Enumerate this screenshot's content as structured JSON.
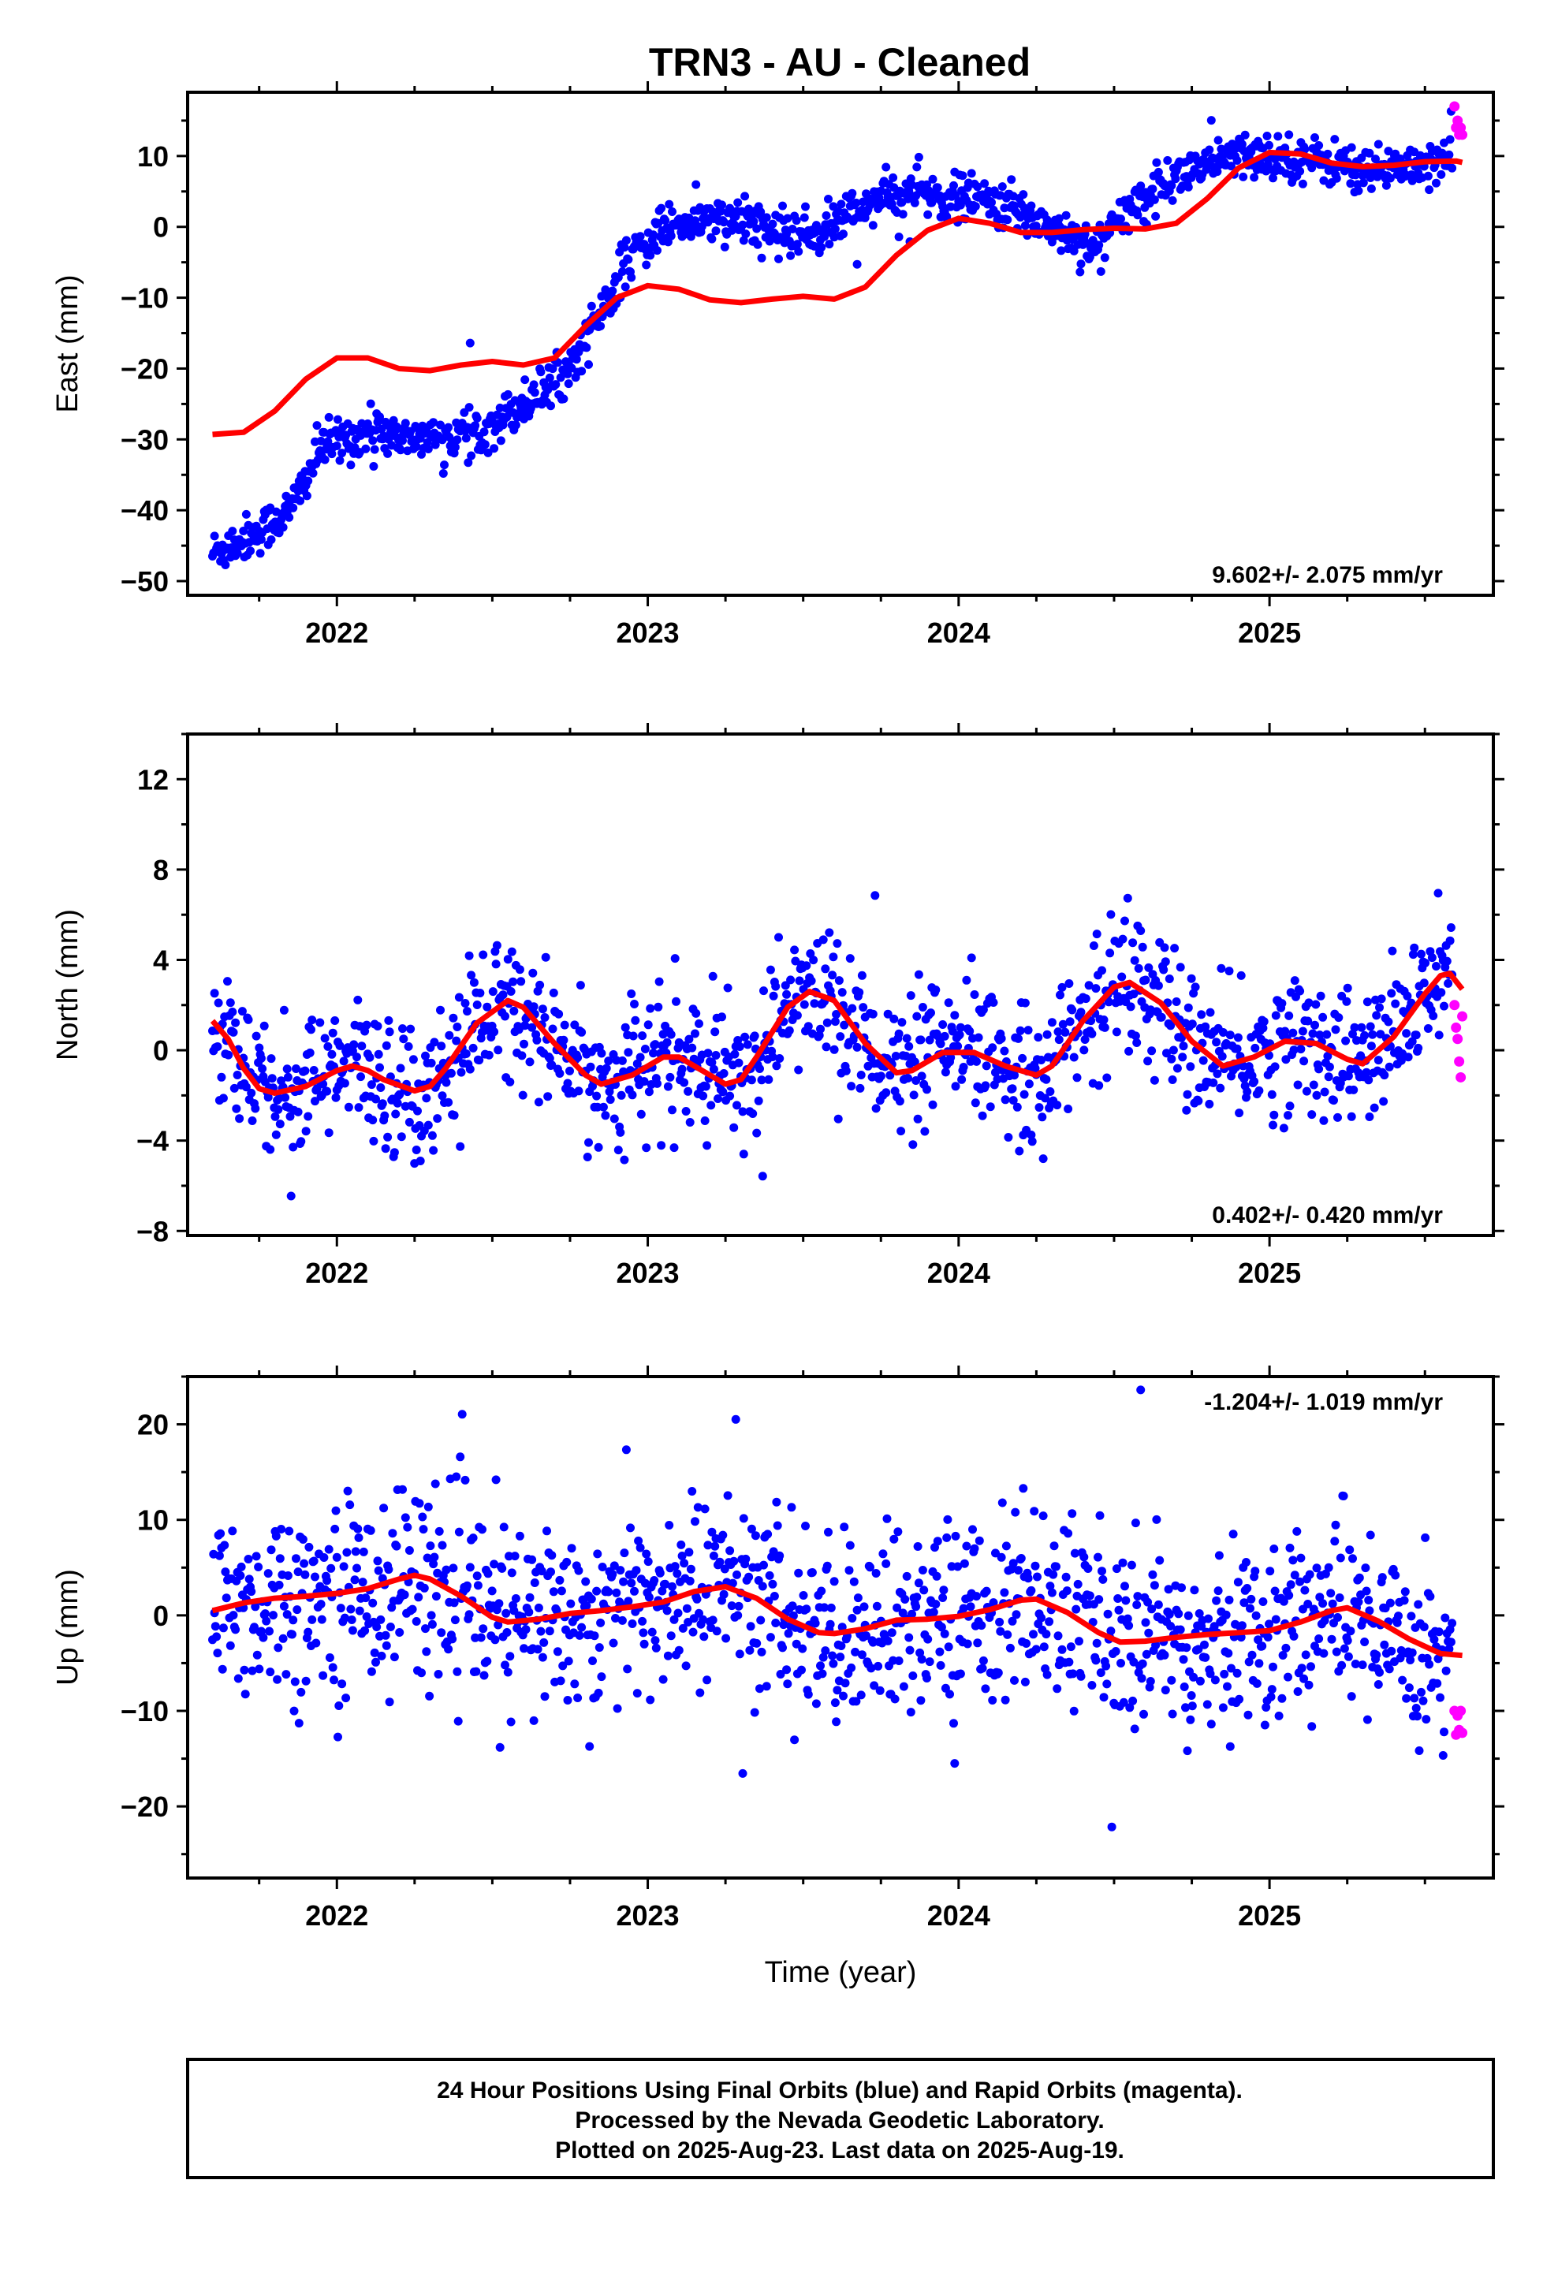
{
  "page": {
    "title": "TRN3  - AU - Cleaned",
    "footer_lines": [
      "24 Hour Positions Using Final Orbits (blue) and Rapid Orbits (magenta).",
      "Processed by the Nevada Geodetic Laboratory.",
      "Plotted on 2025-Aug-23. Last data on 2025-Aug-19."
    ]
  },
  "colors": {
    "final_orbits": "#0000ff",
    "rapid_orbits": "#ff00ff",
    "model_curve": "#ff0000",
    "frame": "#000000"
  },
  "chart_data": [
    {
      "type": "scatter",
      "id": "east",
      "ylabel": "East (mm)",
      "xlabel": "",
      "xlim": [
        2021.52,
        2025.72
      ],
      "ylim": [
        -52,
        19
      ],
      "xticks": [
        2022,
        2023,
        2024,
        2025
      ],
      "xtick_labels": [
        "2022",
        "2023",
        "2024",
        "2025"
      ],
      "yticks": [
        -50,
        -40,
        -30,
        -20,
        -10,
        0,
        10
      ],
      "ytick_labels": [
        "−50",
        "−40",
        "−30",
        "−20",
        "−10",
        "0",
        "10"
      ],
      "rate_annotation": "9.602+/- 2.075 mm/yr",
      "rate_position": "bottom-right",
      "final_orbits_trend": [
        [
          2021.6,
          -46
        ],
        [
          2021.75,
          -43
        ],
        [
          2021.85,
          -40
        ],
        [
          2021.95,
          -31
        ],
        [
          2022.1,
          -29
        ],
        [
          2022.3,
          -30
        ],
        [
          2022.45,
          -29
        ],
        [
          2022.6,
          -25
        ],
        [
          2022.75,
          -20
        ],
        [
          2022.85,
          -12
        ],
        [
          2022.95,
          -4
        ],
        [
          2023.05,
          0
        ],
        [
          2023.2,
          1
        ],
        [
          2023.35,
          0
        ],
        [
          2023.45,
          -1
        ],
        [
          2023.55,
          -1
        ],
        [
          2023.65,
          2
        ],
        [
          2023.75,
          4
        ],
        [
          2023.85,
          5
        ],
        [
          2023.95,
          4
        ],
        [
          2024.05,
          4
        ],
        [
          2024.15,
          3
        ],
        [
          2024.25,
          1
        ],
        [
          2024.35,
          -1
        ],
        [
          2024.45,
          -3
        ],
        [
          2024.5,
          0
        ],
        [
          2024.6,
          5
        ],
        [
          2024.75,
          8
        ],
        [
          2024.9,
          10
        ],
        [
          2025.05,
          10
        ],
        [
          2025.2,
          9
        ],
        [
          2025.35,
          8
        ],
        [
          2025.5,
          9
        ],
        [
          2025.6,
          11
        ]
      ],
      "final_orbits_scatter_mm": 1.6,
      "rapid_orbits": [
        [
          2025.595,
          17
        ],
        [
          2025.6,
          14
        ],
        [
          2025.605,
          15
        ],
        [
          2025.61,
          13
        ],
        [
          2025.615,
          14
        ],
        [
          2025.62,
          13
        ]
      ],
      "model_curve": [
        [
          2021.6,
          -29.3
        ],
        [
          2021.7,
          -29
        ],
        [
          2021.8,
          -26
        ],
        [
          2021.9,
          -21.5
        ],
        [
          2022.0,
          -18.5
        ],
        [
          2022.1,
          -18.5
        ],
        [
          2022.2,
          -20
        ],
        [
          2022.3,
          -20.3
        ],
        [
          2022.4,
          -19.5
        ],
        [
          2022.5,
          -19
        ],
        [
          2022.6,
          -19.5
        ],
        [
          2022.7,
          -18.5
        ],
        [
          2022.8,
          -14
        ],
        [
          2022.9,
          -10
        ],
        [
          2023.0,
          -8.3
        ],
        [
          2023.1,
          -8.8
        ],
        [
          2023.2,
          -10.3
        ],
        [
          2023.3,
          -10.7
        ],
        [
          2023.4,
          -10.2
        ],
        [
          2023.5,
          -9.8
        ],
        [
          2023.6,
          -10.2
        ],
        [
          2023.7,
          -8.5
        ],
        [
          2023.8,
          -4
        ],
        [
          2023.9,
          -0.5
        ],
        [
          2024.0,
          1.2
        ],
        [
          2024.1,
          0.5
        ],
        [
          2024.2,
          -0.8
        ],
        [
          2024.3,
          -0.8
        ],
        [
          2024.4,
          -0.4
        ],
        [
          2024.5,
          -0.2
        ],
        [
          2024.6,
          -0.3
        ],
        [
          2024.7,
          0.5
        ],
        [
          2024.8,
          4
        ],
        [
          2024.9,
          8.3
        ],
        [
          2025.0,
          10.5
        ],
        [
          2025.1,
          10.3
        ],
        [
          2025.2,
          9
        ],
        [
          2025.3,
          8.5
        ],
        [
          2025.4,
          8.7
        ],
        [
          2025.5,
          9.2
        ],
        [
          2025.6,
          9.3
        ],
        [
          2025.62,
          9.1
        ]
      ]
    },
    {
      "type": "scatter",
      "id": "north",
      "ylabel": "North (mm)",
      "xlabel": "",
      "xlim": [
        2021.52,
        2025.72
      ],
      "ylim": [
        -8.2,
        14
      ],
      "xticks": [
        2022,
        2023,
        2024,
        2025
      ],
      "xtick_labels": [
        "2022",
        "2023",
        "2024",
        "2025"
      ],
      "yticks": [
        -8,
        -4,
        0,
        4,
        8,
        12
      ],
      "ytick_labels": [
        "−8",
        "−4",
        "0",
        "4",
        "8",
        "12"
      ],
      "rate_annotation": "0.402+/- 0.420 mm/yr",
      "rate_position": "bottom-right",
      "final_orbits_trend": "model",
      "final_orbits_scatter_mm": 1.5,
      "rapid_orbits": [
        [
          2025.595,
          2
        ],
        [
          2025.6,
          1
        ],
        [
          2025.605,
          0.5
        ],
        [
          2025.61,
          -0.5
        ],
        [
          2025.615,
          -1.2
        ],
        [
          2025.62,
          1.5
        ]
      ],
      "model_curve": [
        [
          2021.6,
          1.3
        ],
        [
          2021.65,
          0.5
        ],
        [
          2021.7,
          -0.8
        ],
        [
          2021.75,
          -1.7
        ],
        [
          2021.8,
          -1.9
        ],
        [
          2021.9,
          -1.6
        ],
        [
          2022.0,
          -0.9
        ],
        [
          2022.05,
          -0.7
        ],
        [
          2022.1,
          -0.9
        ],
        [
          2022.15,
          -1.3
        ],
        [
          2022.25,
          -1.8
        ],
        [
          2022.3,
          -1.6
        ],
        [
          2022.35,
          -0.8
        ],
        [
          2022.45,
          1.2
        ],
        [
          2022.55,
          2.2
        ],
        [
          2022.6,
          1.9
        ],
        [
          2022.7,
          0.3
        ],
        [
          2022.8,
          -1.1
        ],
        [
          2022.85,
          -1.5
        ],
        [
          2022.95,
          -1.1
        ],
        [
          2023.05,
          -0.3
        ],
        [
          2023.1,
          -0.3
        ],
        [
          2023.2,
          -1.1
        ],
        [
          2023.25,
          -1.5
        ],
        [
          2023.3,
          -1.3
        ],
        [
          2023.35,
          -0.3
        ],
        [
          2023.45,
          1.9
        ],
        [
          2023.52,
          2.6
        ],
        [
          2023.6,
          2.2
        ],
        [
          2023.7,
          0.3
        ],
        [
          2023.8,
          -1.0
        ],
        [
          2023.85,
          -0.9
        ],
        [
          2023.95,
          -0.1
        ],
        [
          2024.05,
          -0.1
        ],
        [
          2024.15,
          -0.7
        ],
        [
          2024.25,
          -1.1
        ],
        [
          2024.3,
          -0.7
        ],
        [
          2024.4,
          1.3
        ],
        [
          2024.5,
          2.8
        ],
        [
          2024.55,
          3.0
        ],
        [
          2024.65,
          2.1
        ],
        [
          2024.75,
          0.4
        ],
        [
          2024.85,
          -0.7
        ],
        [
          2024.95,
          -0.3
        ],
        [
          2025.05,
          0.4
        ],
        [
          2025.15,
          0.3
        ],
        [
          2025.25,
          -0.4
        ],
        [
          2025.3,
          -0.6
        ],
        [
          2025.4,
          0.6
        ],
        [
          2025.5,
          2.5
        ],
        [
          2025.55,
          3.3
        ],
        [
          2025.58,
          3.4
        ],
        [
          2025.62,
          2.7
        ]
      ]
    },
    {
      "type": "scatter",
      "id": "up",
      "ylabel": "Up (mm)",
      "xlabel": "Time (year)",
      "xlim": [
        2021.52,
        2025.72
      ],
      "ylim": [
        -27.5,
        25
      ],
      "xticks": [
        2022,
        2023,
        2024,
        2025
      ],
      "xtick_labels": [
        "2022",
        "2023",
        "2024",
        "2025"
      ],
      "yticks": [
        -20,
        -10,
        0,
        10,
        20
      ],
      "ytick_labels": [
        "−20",
        "−10",
        "0",
        "10",
        "20"
      ],
      "rate_annotation": "-1.204+/- 1.019 mm/yr",
      "rate_position": "top-right",
      "final_orbits_trend": "model",
      "final_orbits_scatter_mm": 5,
      "rapid_orbits": [
        [
          2025.595,
          -10
        ],
        [
          2025.6,
          -12.5
        ],
        [
          2025.605,
          -10.5
        ],
        [
          2025.61,
          -12
        ],
        [
          2025.615,
          -10
        ],
        [
          2025.62,
          -12.3
        ]
      ],
      "model_curve": [
        [
          2021.6,
          0.5
        ],
        [
          2021.7,
          1.3
        ],
        [
          2021.8,
          1.8
        ],
        [
          2021.9,
          2.0
        ],
        [
          2022.0,
          2.3
        ],
        [
          2022.1,
          2.8
        ],
        [
          2022.2,
          3.8
        ],
        [
          2022.25,
          4.2
        ],
        [
          2022.3,
          3.8
        ],
        [
          2022.4,
          2.0
        ],
        [
          2022.5,
          -0.2
        ],
        [
          2022.55,
          -0.7
        ],
        [
          2022.65,
          -0.4
        ],
        [
          2022.75,
          0.2
        ],
        [
          2022.85,
          0.5
        ],
        [
          2022.95,
          0.9
        ],
        [
          2023.05,
          1.4
        ],
        [
          2023.15,
          2.5
        ],
        [
          2023.25,
          3.0
        ],
        [
          2023.35,
          1.8
        ],
        [
          2023.45,
          -0.4
        ],
        [
          2023.55,
          -1.8
        ],
        [
          2023.6,
          -1.9
        ],
        [
          2023.7,
          -1.4
        ],
        [
          2023.8,
          -0.5
        ],
        [
          2023.9,
          -0.4
        ],
        [
          2024.0,
          -0.1
        ],
        [
          2024.1,
          0.6
        ],
        [
          2024.2,
          1.6
        ],
        [
          2024.25,
          1.7
        ],
        [
          2024.35,
          0.3
        ],
        [
          2024.45,
          -1.8
        ],
        [
          2024.52,
          -2.8
        ],
        [
          2024.6,
          -2.7
        ],
        [
          2024.7,
          -2.3
        ],
        [
          2024.8,
          -2.0
        ],
        [
          2024.9,
          -1.8
        ],
        [
          2025.0,
          -1.6
        ],
        [
          2025.1,
          -0.7
        ],
        [
          2025.2,
          0.5
        ],
        [
          2025.25,
          0.8
        ],
        [
          2025.35,
          -0.6
        ],
        [
          2025.45,
          -2.5
        ],
        [
          2025.55,
          -4.0
        ],
        [
          2025.62,
          -4.2
        ]
      ]
    }
  ]
}
